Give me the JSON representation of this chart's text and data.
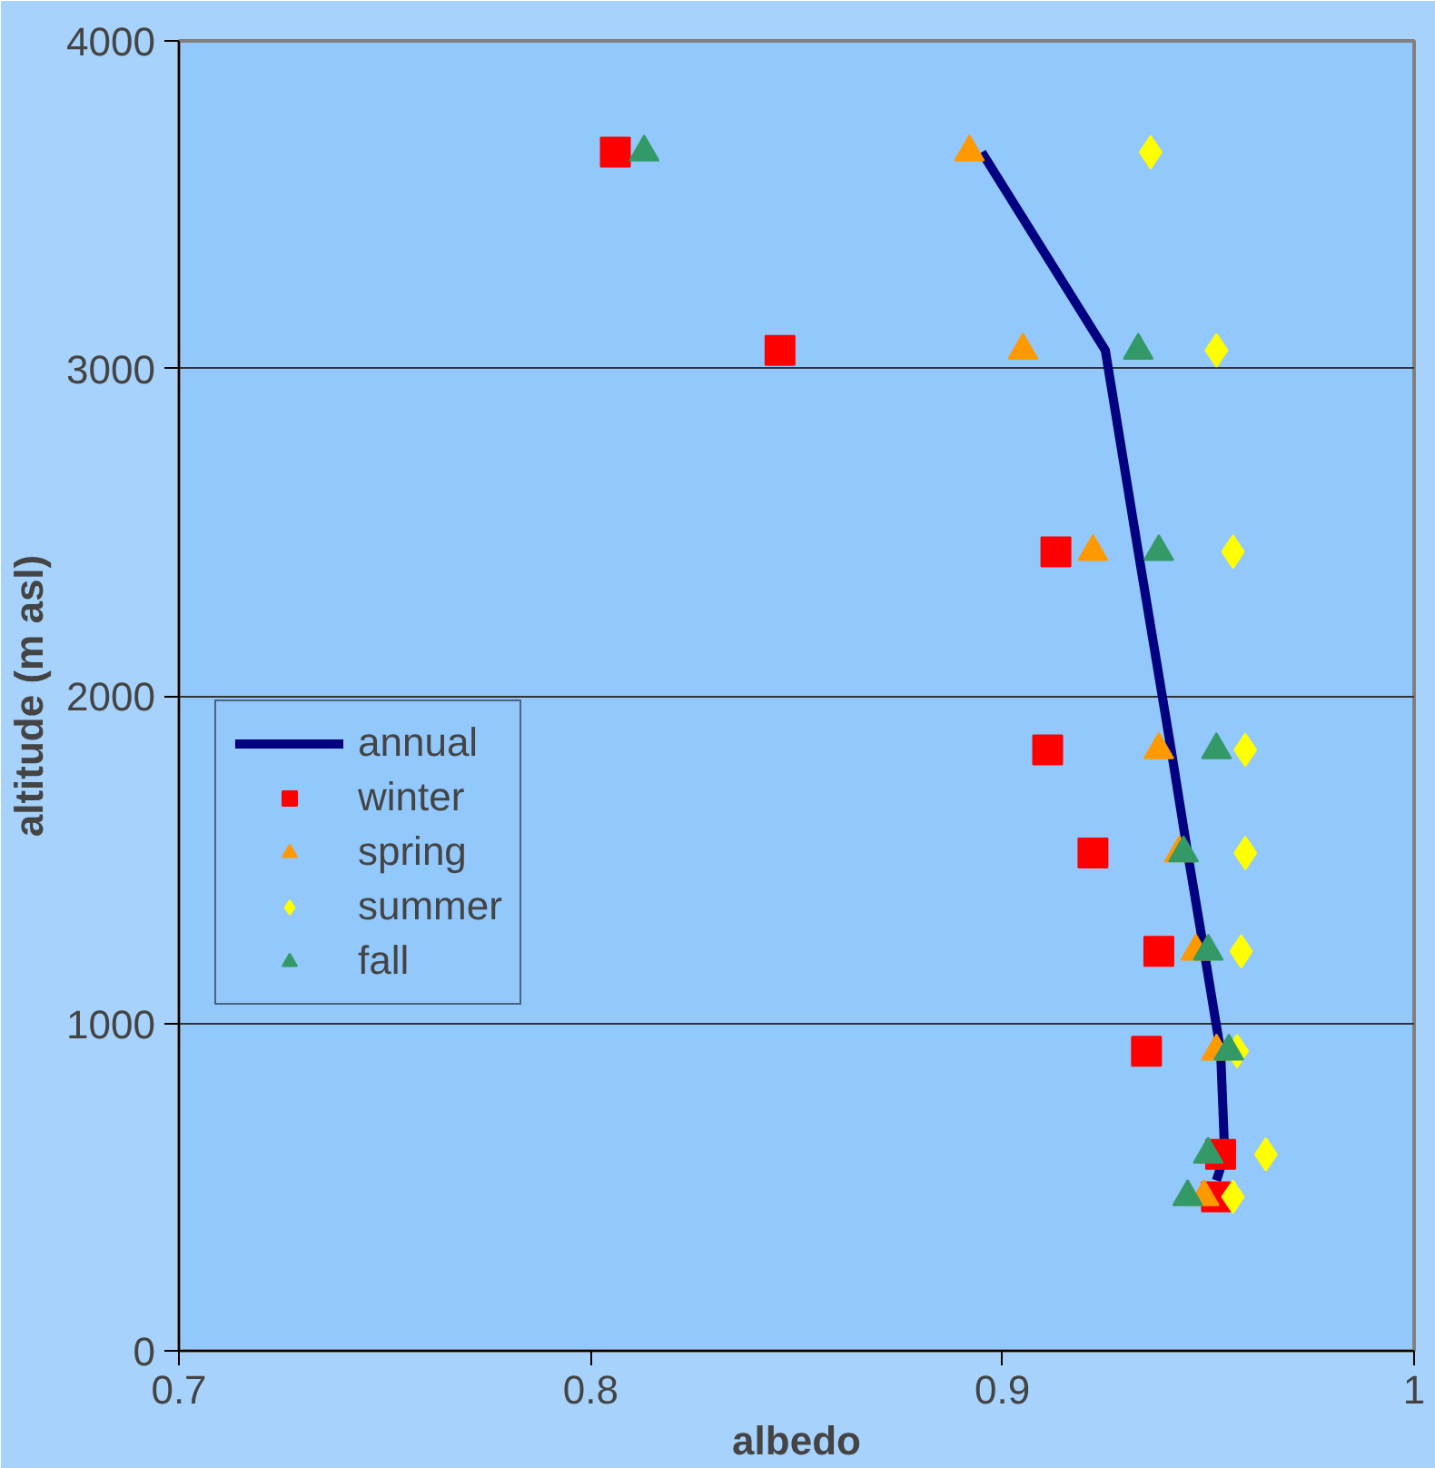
{
  "chart_data": {
    "type": "scatter",
    "xlabel": "albedo",
    "ylabel": "altitude (m asl)",
    "xlim": [
      0.7,
      1.0
    ],
    "xticks": [
      0.7,
      0.8,
      0.9,
      1
    ],
    "ylim": [
      0,
      4000
    ],
    "yticks": [
      0,
      1000,
      2000,
      3000,
      4000
    ],
    "grid": "y",
    "legend": "left",
    "series": [
      {
        "name": "annual",
        "type": "line",
        "color": "#000080",
        "x": [
          0.895,
          0.925,
          0.933,
          0.941,
          0.945,
          0.949,
          0.953,
          0.954,
          0.952
        ],
        "values": [
          3660,
          3055,
          2440,
          1835,
          1520,
          1220,
          915,
          600,
          520
        ]
      },
      {
        "name": "winter",
        "marker": "square",
        "color": "#ff0000",
        "x": [
          0.806,
          0.846,
          0.913,
          0.911,
          0.922,
          0.938,
          0.935,
          0.953,
          0.952
        ],
        "values": [
          3660,
          3055,
          2440,
          1835,
          1520,
          1220,
          915,
          600,
          470
        ]
      },
      {
        "name": "spring",
        "marker": "triangle",
        "color": "#ff9900",
        "x": [
          0.892,
          0.905,
          0.922,
          0.938,
          0.943,
          0.947,
          0.952,
          null,
          0.949
        ],
        "values": [
          3660,
          3055,
          2440,
          1835,
          1520,
          1220,
          915,
          null,
          470
        ]
      },
      {
        "name": "summer",
        "marker": "diamond",
        "color": "#ffff00",
        "x": [
          0.936,
          0.952,
          0.956,
          0.959,
          0.959,
          0.958,
          0.957,
          0.964,
          0.956
        ],
        "values": [
          3660,
          3055,
          2440,
          1835,
          1520,
          1220,
          915,
          600,
          470
        ]
      },
      {
        "name": "fall",
        "marker": "triangle",
        "color": "#339966",
        "x": [
          0.813,
          0.933,
          0.938,
          0.952,
          0.944,
          0.95,
          0.955,
          0.95,
          0.945
        ],
        "values": [
          3660,
          3055,
          2440,
          1835,
          1520,
          1220,
          915,
          600,
          470
        ]
      }
    ]
  }
}
